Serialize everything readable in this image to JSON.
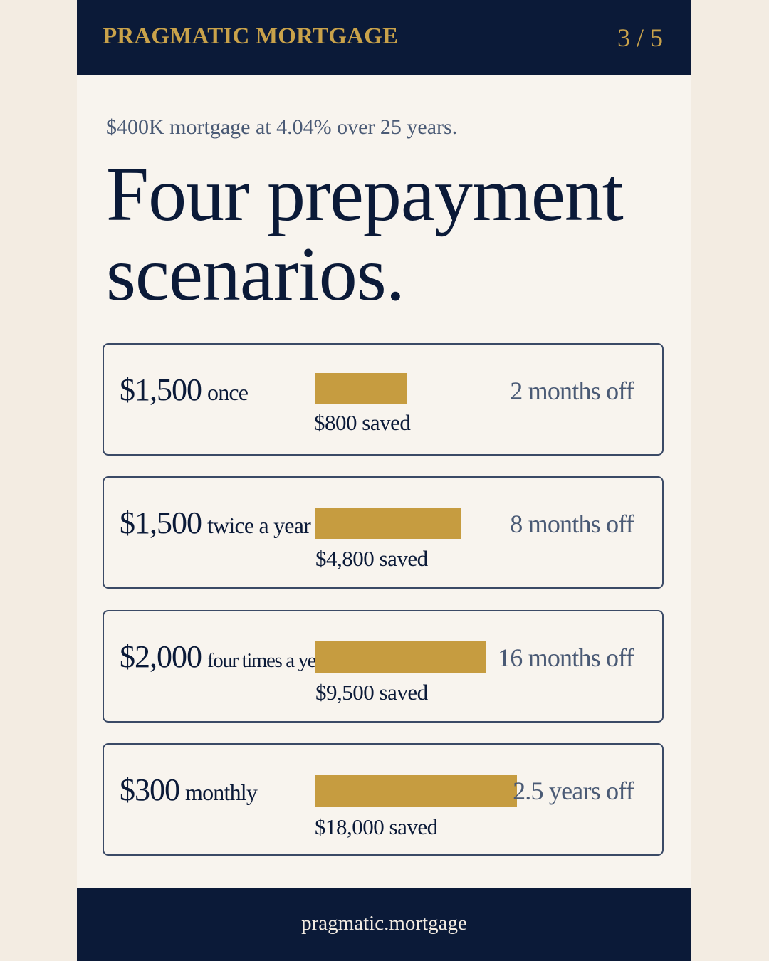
{
  "header": {
    "brand": "PRAGMATIC MORTGAGE",
    "page": "3 / 5"
  },
  "subtitle": "$400K mortgage at 4.04% over 25 years.",
  "headline": {
    "line1": "Four prepayment",
    "line2": "scenarios."
  },
  "scenarios": [
    {
      "amount": "$1,500",
      "frequency": "once",
      "saved": "$800 saved",
      "saved_value": 800,
      "time_off": "2 months off"
    },
    {
      "amount": "$1,500",
      "frequency": "twice a year",
      "saved": "$4,800 saved",
      "saved_value": 4800,
      "time_off": "8 months off"
    },
    {
      "amount": "$2,000",
      "frequency": "four times a year",
      "saved": "$9,500 saved",
      "saved_value": 9500,
      "time_off": "16 months off"
    },
    {
      "amount": "$300",
      "frequency": "monthly",
      "saved": "$18,000 saved",
      "saved_value": 18000,
      "time_off": "2.5 years off"
    }
  ],
  "colors": {
    "navy": "#0b1a38",
    "gold": "#c69c40",
    "cream": "#f8f4ee"
  },
  "footer": {
    "site": "pragmatic.mortgage"
  }
}
